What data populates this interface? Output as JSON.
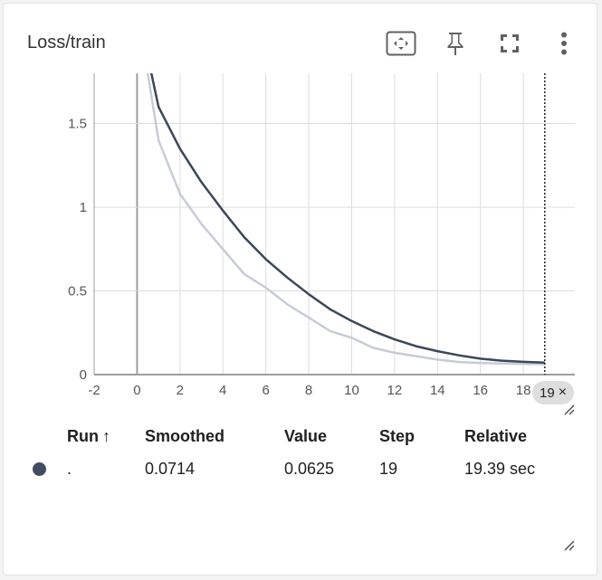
{
  "card": {
    "title": "Loss/train"
  },
  "toolbar": {
    "fit_icon": "fit-domain-icon",
    "pin_icon": "pin-icon",
    "fullscreen_icon": "fullscreen-icon",
    "more_icon": "more-vert-icon"
  },
  "colors": {
    "smoothed_line": "#3c475c",
    "raw_line": "#c8ccd6",
    "grid": "#dcdcdc",
    "run_dot": "#424b61"
  },
  "chart_data": {
    "type": "line",
    "title": "Loss/train",
    "xlabel": "",
    "ylabel": "",
    "xlim": [
      -2,
      20.4
    ],
    "ylim": [
      0,
      1.8
    ],
    "x_ticks": [
      "-2",
      "0",
      "2",
      "4",
      "6",
      "8",
      "10",
      "12",
      "14",
      "16",
      "18"
    ],
    "y_ticks": [
      "0",
      "0.5",
      "1",
      "1.5"
    ],
    "grid": true,
    "cursor_step": 19,
    "series": [
      {
        "style": "raw",
        "x": [
          0,
          1,
          2,
          3,
          4,
          5,
          6,
          7,
          8,
          9,
          10,
          11,
          12,
          13,
          14,
          15,
          16,
          17,
          18,
          19
        ],
        "y": [
          2.2,
          1.4,
          1.08,
          0.9,
          0.75,
          0.6,
          0.52,
          0.42,
          0.34,
          0.26,
          0.22,
          0.16,
          0.13,
          0.11,
          0.09,
          0.075,
          0.07,
          0.066,
          0.064,
          0.0625
        ]
      },
      {
        "style": "smoothed",
        "x": [
          0,
          1,
          2,
          3,
          4,
          5,
          6,
          7,
          8,
          9,
          10,
          11,
          12,
          13,
          14,
          15,
          16,
          17,
          18,
          19
        ],
        "y": [
          2.2,
          1.6,
          1.35,
          1.15,
          0.98,
          0.82,
          0.69,
          0.58,
          0.48,
          0.39,
          0.32,
          0.26,
          0.21,
          0.17,
          0.14,
          0.115,
          0.095,
          0.083,
          0.076,
          0.0714
        ]
      }
    ]
  },
  "step_chip": {
    "label": "19",
    "close": "×"
  },
  "table": {
    "headers": {
      "run": "Run",
      "sort": "↑",
      "smoothed": "Smoothed",
      "value": "Value",
      "step": "Step",
      "relative": "Relative"
    },
    "rows": [
      {
        "run": ".",
        "smoothed": "0.0714",
        "value": "0.0625",
        "step": "19",
        "relative": "19.39 sec"
      }
    ]
  }
}
